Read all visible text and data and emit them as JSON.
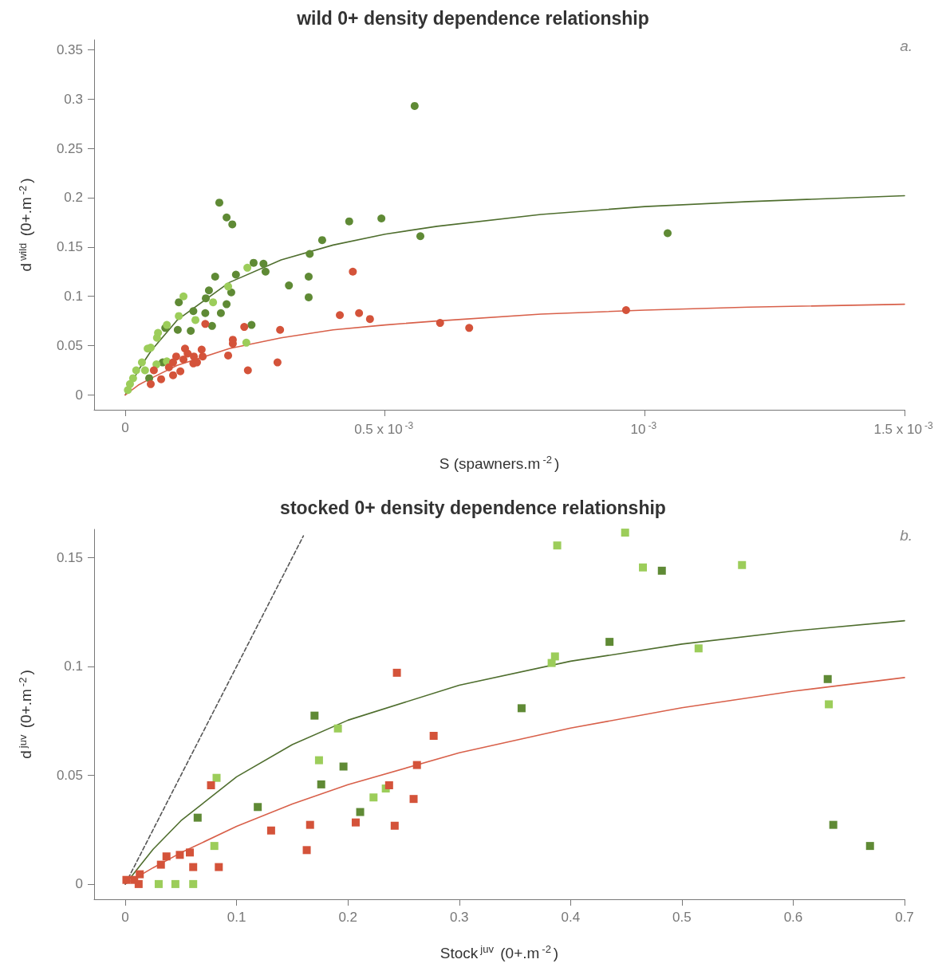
{
  "chart_data": [
    {
      "type": "scatter",
      "title": "wild 0+ density dependence relationship",
      "xlabel": "S (spawners.m$^{-2}$)",
      "ylabel": "d$^{wild}$ (0+.m$^{-2}$)",
      "annotations": [
        "a."
      ],
      "xlim": [
        -6e-05,
        0.0015
      ],
      "ylim": [
        -0.015,
        0.36
      ],
      "xticks": [
        0,
        {
          "value": 0.0005,
          "label": "0.5 x 10$^{-3}$"
        },
        {
          "value": 0.001,
          "label": "10$^{-3}$"
        },
        {
          "value": 0.0015,
          "label": "1.5 x 10$^{-3}$"
        }
      ],
      "yticks": [
        0,
        0.05,
        0.1,
        0.15,
        0.2,
        0.25,
        0.3,
        0.35
      ],
      "grid": false,
      "marker": "circle",
      "series": [
        {
          "color": "#5f8a35",
          "x": [
            0.000557,
            0.000181,
            0.000195,
            0.000206,
            0.000431,
            0.000493,
            0.000568,
            0.001044,
            0.000379,
            0.000355,
            0.000247,
            0.000266,
            0.00027,
            0.000213,
            0.000173,
            0.000353,
            0.000315,
            0.000161,
            0.000204,
            0.000353,
            0.000155,
            0.000103,
            0.000195,
            0.000131,
            0.000154,
            0.000184,
            0.000101,
            0.000126,
            0.000167,
            0.000243,
            7.7e-05,
            7.2e-05,
            4.6e-05
          ],
          "values": [
            0.293,
            0.195,
            0.18,
            0.173,
            0.176,
            0.179,
            0.161,
            0.164,
            0.157,
            0.143,
            0.134,
            0.133,
            0.125,
            0.122,
            0.12,
            0.12,
            0.111,
            0.106,
            0.104,
            0.099,
            0.098,
            0.094,
            0.092,
            0.085,
            0.083,
            0.083,
            0.066,
            0.065,
            0.07,
            0.071,
            0.068,
            0.033,
            0.017
          ]
        },
        {
          "color": "#9ccd5a",
          "x": [
            0.000169,
            0.000198,
            0.000235,
            0.000112,
            0.000103,
            0.000135,
            8e-05,
            6.3e-05,
            6.1e-05,
            4.9e-05,
            4.3e-05,
            3.2e-05,
            2.1e-05,
            3.8e-05,
            6e-05,
            8e-05,
            1.5e-05,
            9e-06,
            5e-06,
            0.000233
          ],
          "values": [
            0.094,
            0.11,
            0.129,
            0.1,
            0.08,
            0.076,
            0.071,
            0.063,
            0.058,
            0.048,
            0.047,
            0.033,
            0.025,
            0.025,
            0.031,
            0.034,
            0.017,
            0.011,
            0.005,
            0.053
          ]
        },
        {
          "color": "#d4533a",
          "x": [
            0.000438,
            0.000413,
            0.00045,
            0.000471,
            0.000606,
            0.000662,
            0.000964,
            0.000298,
            0.000293,
            0.000236,
            0.000154,
            0.000229,
            0.000207,
            0.000207,
            0.000115,
            0.000147,
            9.8e-05,
            0.00012,
            0.000112,
            0.000132,
            0.000131,
            0.000138,
            0.000149,
            0.000198,
            9.2e-05,
            8.4e-05,
            0.000106,
            9.2e-05,
            5.5e-05,
            6.9e-05,
            4.9e-05
          ],
          "values": [
            0.125,
            0.081,
            0.083,
            0.077,
            0.073,
            0.068,
            0.086,
            0.066,
            0.033,
            0.025,
            0.072,
            0.069,
            0.056,
            0.052,
            0.047,
            0.046,
            0.039,
            0.042,
            0.036,
            0.039,
            0.032,
            0.033,
            0.039,
            0.04,
            0.033,
            0.028,
            0.024,
            0.02,
            0.025,
            0.016,
            0.011
          ]
        },
        {
          "type": "line",
          "marker": "none",
          "color": "#4f6e2e",
          "x": [
            0,
            2.5e-05,
            5e-05,
            0.0001,
            0.0002,
            0.0003,
            0.0004,
            0.0005,
            0.0006,
            0.0008,
            0.001,
            0.0012,
            0.0015
          ],
          "values": [
            0,
            0.025,
            0.045,
            0.076,
            0.114,
            0.137,
            0.152,
            0.163,
            0.171,
            0.183,
            0.191,
            0.196,
            0.202
          ]
        },
        {
          "type": "line",
          "marker": "none",
          "color": "#d8604a",
          "x": [
            0,
            2.5e-05,
            5e-05,
            0.0001,
            0.0002,
            0.0003,
            0.0004,
            0.0005,
            0.0006,
            0.0008,
            0.001,
            0.0012,
            0.0015
          ],
          "values": [
            0,
            0.01,
            0.017,
            0.03,
            0.047,
            0.058,
            0.066,
            0.071,
            0.075,
            0.082,
            0.086,
            0.089,
            0.092
          ]
        }
      ]
    },
    {
      "type": "scatter",
      "title": "stocked 0+ density dependence relationship",
      "xlabel": "Stock$^{juv}$ (0+.m$^{-2}$)",
      "ylabel": "d$^{juv}$ (0+.m$^{-2}$)",
      "annotations": [
        "b."
      ],
      "xlim": [
        -0.028,
        0.7
      ],
      "ylim": [
        -0.007,
        0.163
      ],
      "xticks": [
        0,
        0.1,
        0.2,
        0.3,
        0.4,
        0.5,
        0.6,
        0.7
      ],
      "yticks": [
        0,
        0.05,
        0.1,
        0.15
      ],
      "grid": false,
      "marker": "square",
      "series": [
        {
          "color": "#5f8a35",
          "x": [
            0.482,
            0.435,
            0.631,
            0.356,
            0.17,
            0.196,
            0.176,
            0.119,
            0.211,
            0.065,
            0.636,
            0.669
          ],
          "values": [
            0.144,
            0.1113,
            0.0942,
            0.0808,
            0.0774,
            0.054,
            0.0458,
            0.0354,
            0.0331,
            0.0305,
            0.0272,
            0.0175
          ]
        },
        {
          "color": "#9ccd5a",
          "x": [
            0.449,
            0.388,
            0.465,
            0.554,
            0.515,
            0.386,
            0.383,
            0.632,
            0.191,
            0.174,
            0.082,
            0.223,
            0.234,
            0.08,
            0.03,
            0.045,
            0.061
          ],
          "values": [
            0.1615,
            0.1556,
            0.1455,
            0.1466,
            0.1083,
            0.1046,
            0.1016,
            0.0826,
            0.0715,
            0.0569,
            0.0488,
            0.0398,
            0.0439,
            0.0175,
            0,
            0,
            0
          ]
        },
        {
          "color": "#d4533a",
          "x": [
            0.244,
            0.277,
            0.262,
            0.237,
            0.259,
            0.207,
            0.242,
            0.077,
            0.131,
            0.166,
            0.163,
            0.037,
            0.049,
            0.058,
            0.032,
            0.061,
            0.084,
            0.001,
            0.008,
            0.013,
            0.012
          ],
          "values": [
            0.0971,
            0.0681,
            0.0547,
            0.0454,
            0.0391,
            0.0283,
            0.0268,
            0.0454,
            0.0246,
            0.0272,
            0.0156,
            0.0127,
            0.0134,
            0.0145,
            0.0089,
            0.0078,
            0.0078,
            0.0019,
            0.0019,
            0.0045,
            0
          ]
        },
        {
          "type": "line",
          "marker": "none",
          "color": "#4f6e2e",
          "x": [
            0,
            0.025,
            0.05,
            0.1,
            0.15,
            0.2,
            0.3,
            0.4,
            0.5,
            0.6,
            0.7
          ],
          "values": [
            0,
            0.016,
            0.0291,
            0.0493,
            0.0641,
            0.0753,
            0.0914,
            0.1024,
            0.1103,
            0.1163,
            0.121
          ]
        },
        {
          "type": "line",
          "marker": "none",
          "color": "#d8604a",
          "x": [
            0,
            0.025,
            0.05,
            0.1,
            0.15,
            0.2,
            0.3,
            0.4,
            0.5,
            0.6,
            0.7
          ],
          "values": [
            0,
            0.0075,
            0.0144,
            0.0265,
            0.0368,
            0.0457,
            0.0603,
            0.0717,
            0.081,
            0.0886,
            0.0949
          ]
        },
        {
          "type": "line",
          "marker": "none",
          "line_style": "dashed",
          "color": "#555555",
          "x": [
            0,
            0.16
          ],
          "values": [
            0,
            0.16
          ]
        }
      ]
    }
  ]
}
